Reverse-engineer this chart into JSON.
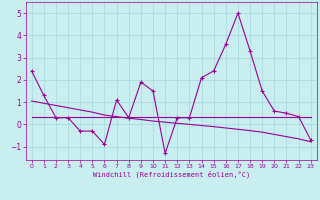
{
  "title": "",
  "xlabel": "Windchill (Refroidissement éolien,°C)",
  "ylabel": "",
  "background_color": "#c8eef0",
  "grid_color": "#a8d8dc",
  "line_color": "#990099",
  "xlim": [
    -0.5,
    23.5
  ],
  "ylim": [
    -1.6,
    5.5
  ],
  "yticks": [
    -1,
    0,
    1,
    2,
    3,
    4,
    5
  ],
  "xticks": [
    0,
    1,
    2,
    3,
    4,
    5,
    6,
    7,
    8,
    9,
    10,
    11,
    12,
    13,
    14,
    15,
    16,
    17,
    18,
    19,
    20,
    21,
    22,
    23
  ],
  "main_data": [
    2.4,
    1.3,
    0.3,
    0.3,
    -0.3,
    -0.3,
    -0.9,
    1.1,
    0.3,
    1.9,
    1.5,
    -1.3,
    0.3,
    0.3,
    2.1,
    2.4,
    3.6,
    5.0,
    3.3,
    1.5,
    0.6,
    0.5,
    0.35,
    -0.7
  ],
  "flat_line": [
    0.35,
    0.35,
    0.35,
    0.35,
    0.35,
    0.35,
    0.35,
    0.35,
    0.35,
    0.35,
    0.35,
    0.35,
    0.35,
    0.35,
    0.35,
    0.35,
    0.35,
    0.35,
    0.35,
    0.35,
    0.35,
    0.35,
    0.35,
    0.35
  ],
  "decreasing_line": [
    1.05,
    0.95,
    0.85,
    0.75,
    0.65,
    0.55,
    0.42,
    0.35,
    0.28,
    0.22,
    0.15,
    0.1,
    0.05,
    0.0,
    -0.05,
    -0.1,
    -0.16,
    -0.22,
    -0.28,
    -0.35,
    -0.45,
    -0.55,
    -0.65,
    -0.78
  ]
}
